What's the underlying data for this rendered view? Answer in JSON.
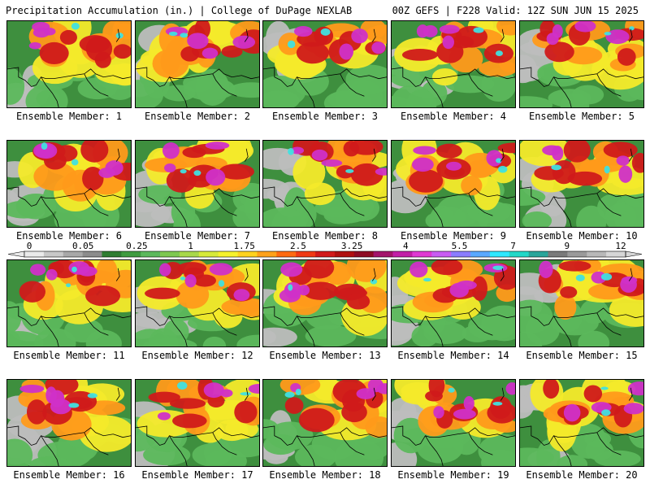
{
  "header": {
    "title": "Precipitation Accumulation (in.) | College of DuPage NEXLAB",
    "run": "00Z GEFS | F228 Valid: 12Z SUN JUN 15 2025"
  },
  "colorbar": {
    "labels": [
      "0",
      "0.05",
      "0.25",
      "1",
      "1.75",
      "2.5",
      "3.25",
      "4",
      "5.5",
      "7",
      "9",
      "12"
    ],
    "colors": [
      "#eaeaea",
      "#c8c8c8",
      "#a8a8a8",
      "#8c8c8c",
      "#2f7d32",
      "#3f9b3f",
      "#5cb85c",
      "#7ec850",
      "#a8d84a",
      "#d7ea3a",
      "#f6f22c",
      "#ffd21f",
      "#ffa11a",
      "#ff6a10",
      "#f03a14",
      "#d21a1a",
      "#b01010",
      "#8e0c24",
      "#a3146b",
      "#c21ea6",
      "#e038d2",
      "#c85cf2",
      "#8a7cff",
      "#5aa8ff",
      "#2ee8ff",
      "#22d8c8",
      "#2aa59a",
      "#7a7a7a",
      "#9a9a9a",
      "#b8b8b8",
      "#d6d6d6"
    ]
  },
  "legend_colors": {
    "dry": "#bdbdbd",
    "light": "#3a8f3a",
    "moderate": "#f4ea2a",
    "heavy": "#d01a1a",
    "very_heavy": "#d030c8",
    "extreme": "#40e0e0"
  },
  "members": [
    {
      "label": "Ensemble Member: 1"
    },
    {
      "label": "Ensemble Member: 2"
    },
    {
      "label": "Ensemble Member: 3"
    },
    {
      "label": "Ensemble Member: 4"
    },
    {
      "label": "Ensemble Member: 5"
    },
    {
      "label": "Ensemble Member: 6"
    },
    {
      "label": "Ensemble Member: 7"
    },
    {
      "label": "Ensemble Member: 8"
    },
    {
      "label": "Ensemble Member: 9"
    },
    {
      "label": "Ensemble Member: 10"
    },
    {
      "label": "Ensemble Member: 11"
    },
    {
      "label": "Ensemble Member: 12"
    },
    {
      "label": "Ensemble Member: 13"
    },
    {
      "label": "Ensemble Member: 14"
    },
    {
      "label": "Ensemble Member: 15"
    },
    {
      "label": "Ensemble Member: 16"
    },
    {
      "label": "Ensemble Member: 17"
    },
    {
      "label": "Ensemble Member: 18"
    },
    {
      "label": "Ensemble Member: 19"
    },
    {
      "label": "Ensemble Member: 20"
    }
  ]
}
